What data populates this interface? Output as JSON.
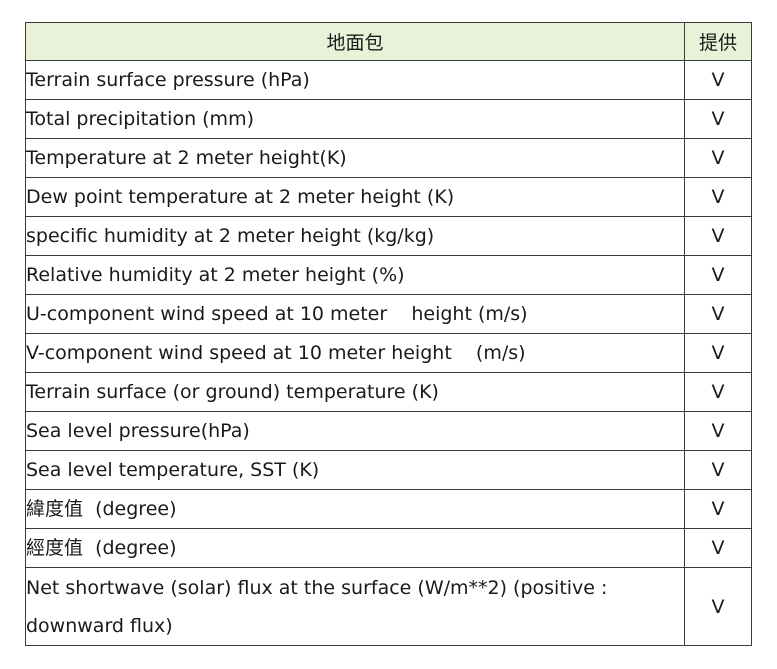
{
  "table": {
    "headers": [
      "地面包",
      "提供"
    ],
    "rows": [
      {
        "name": "Terrain surface pressure (hPa)",
        "mark": "V"
      },
      {
        "name": "Total precipitation (mm)",
        "mark": "V"
      },
      {
        "name": "Temperature at 2 meter height(K)",
        "mark": "V"
      },
      {
        "name": "Dew point temperature at 2 meter height (K)",
        "mark": "V"
      },
      {
        "name": "specific humidity at 2 meter height (kg/kg)",
        "mark": "V"
      },
      {
        "name": "Relative humidity at 2 meter height (%)",
        "mark": "V"
      },
      {
        "name": "U-component wind speed at 10 meter    height (m/s)",
        "mark": "V"
      },
      {
        "name": "V-component wind speed at 10 meter height    (m/s)",
        "mark": "V"
      },
      {
        "name": "Terrain surface (or ground) temperature (K)",
        "mark": "V"
      },
      {
        "name": "Sea level pressure(hPa)",
        "mark": "V"
      },
      {
        "name": "Sea level temperature, SST (K)",
        "mark": "V"
      },
      {
        "name": "緯度值  (degree)",
        "mark": "V"
      },
      {
        "name": "經度值  (degree)",
        "mark": "V"
      },
      {
        "name": "Net shortwave (solar) flux at the surface (W/m**2) (positive : downward flux)",
        "mark": "V"
      }
    ]
  },
  "colors": {
    "header_bg": "#e8f2d8",
    "mark": "#e02020",
    "border": "#3a3a3a"
  }
}
